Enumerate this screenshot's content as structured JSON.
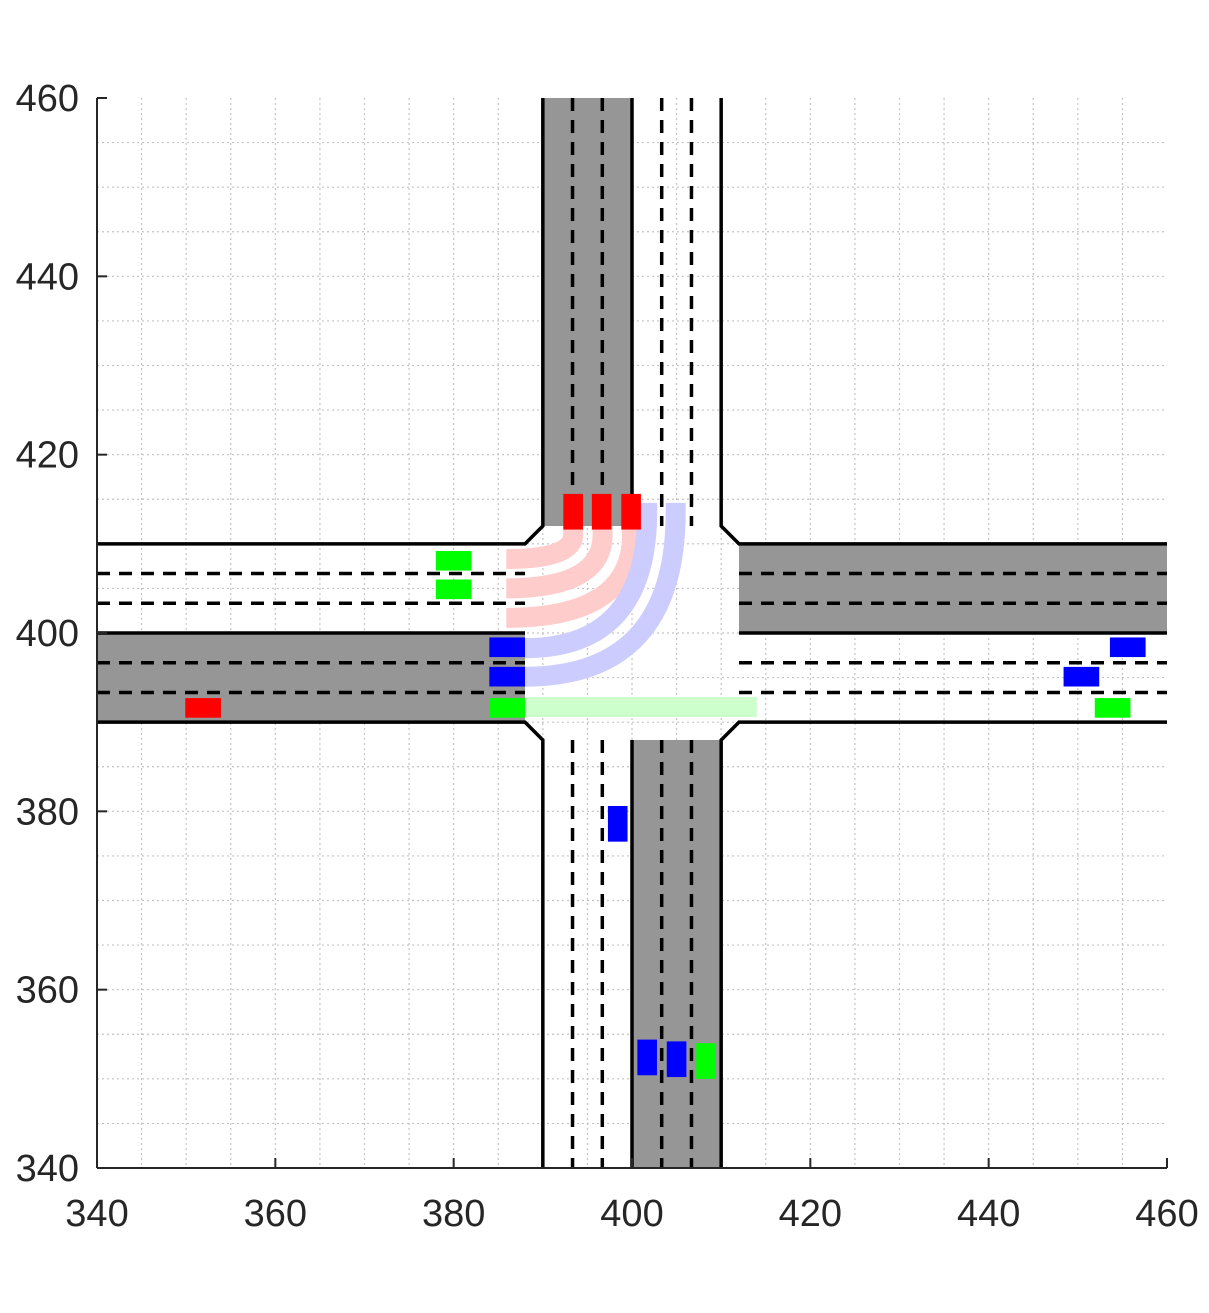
{
  "chart_data": {
    "type": "scatter",
    "title": "",
    "xlabel": "",
    "ylabel": "",
    "xlim": [
      340,
      460
    ],
    "ylim": [
      340,
      460
    ],
    "xticks": [
      340,
      360,
      380,
      400,
      420,
      440,
      460
    ],
    "yticks": [
      340,
      360,
      380,
      400,
      420,
      440,
      460
    ],
    "xtick_labels": [
      "340",
      "360",
      "380",
      "400",
      "420",
      "440",
      "460"
    ],
    "ytick_labels": [
      "340",
      "360",
      "380",
      "400",
      "420",
      "440",
      "460"
    ],
    "grid": "major and minor, dotted",
    "colors": {
      "road": "#969696",
      "vehicle_red": "#ff0000",
      "vehicle_green": "#00ff00",
      "vehicle_blue": "#0000ff",
      "path_red": "#ffcccc",
      "path_blue": "#ccccff",
      "path_green": "#ccffcc"
    },
    "gray_road_segments": [
      {
        "x": [
          390,
          400
        ],
        "y": [
          412,
          460
        ]
      },
      {
        "x": [
          400,
          410
        ],
        "y": [
          340,
          388
        ]
      },
      {
        "x": [
          340,
          388
        ],
        "y": [
          390,
          400
        ]
      },
      {
        "x": [
          412,
          460
        ],
        "y": [
          400,
          410
        ]
      }
    ],
    "vehicles": [
      {
        "color": "red",
        "x": 351.9,
        "y": 391.6,
        "orientation": "horizontal"
      },
      {
        "color": "red",
        "x": 393.4,
        "y": 413.6,
        "orientation": "vertical"
      },
      {
        "color": "red",
        "x": 396.6,
        "y": 413.6,
        "orientation": "vertical"
      },
      {
        "color": "red",
        "x": 399.9,
        "y": 413.6,
        "orientation": "vertical"
      },
      {
        "color": "green",
        "x": 380.0,
        "y": 408.1,
        "orientation": "horizontal"
      },
      {
        "color": "green",
        "x": 380.0,
        "y": 404.9,
        "orientation": "horizontal"
      },
      {
        "color": "green",
        "x": 386.0,
        "y": 391.6,
        "orientation": "horizontal"
      },
      {
        "color": "green",
        "x": 453.9,
        "y": 391.6,
        "orientation": "horizontal"
      },
      {
        "color": "green",
        "x": 408.3,
        "y": 352.0,
        "orientation": "vertical"
      },
      {
        "color": "blue",
        "x": 386.0,
        "y": 398.4,
        "orientation": "horizontal"
      },
      {
        "color": "blue",
        "x": 386.0,
        "y": 395.1,
        "orientation": "horizontal"
      },
      {
        "color": "blue",
        "x": 455.6,
        "y": 398.4,
        "orientation": "horizontal"
      },
      {
        "color": "blue",
        "x": 450.4,
        "y": 395.1,
        "orientation": "horizontal"
      },
      {
        "color": "blue",
        "x": 398.4,
        "y": 378.6,
        "orientation": "vertical"
      },
      {
        "color": "blue",
        "x": 401.7,
        "y": 352.4,
        "orientation": "vertical"
      },
      {
        "color": "blue",
        "x": 405.0,
        "y": 352.2,
        "orientation": "vertical"
      }
    ],
    "paths": [
      {
        "color": "red",
        "from": [
          393.4,
          412.0
        ],
        "to": [
          385.9,
          408.3
        ]
      },
      {
        "color": "red",
        "from": [
          396.7,
          412.0
        ],
        "to": [
          385.9,
          405.0
        ]
      },
      {
        "color": "red",
        "from": [
          400.0,
          412.0
        ],
        "to": [
          385.9,
          401.7
        ]
      },
      {
        "color": "blue",
        "from": [
          401.7,
          414.6
        ],
        "to": [
          388.0,
          398.3
        ]
      },
      {
        "color": "blue",
        "from": [
          404.9,
          414.6
        ],
        "to": [
          388.0,
          395.1
        ]
      },
      {
        "color": "green",
        "from": [
          388.0,
          391.7
        ],
        "to": [
          414.0,
          391.7
        ]
      }
    ]
  }
}
